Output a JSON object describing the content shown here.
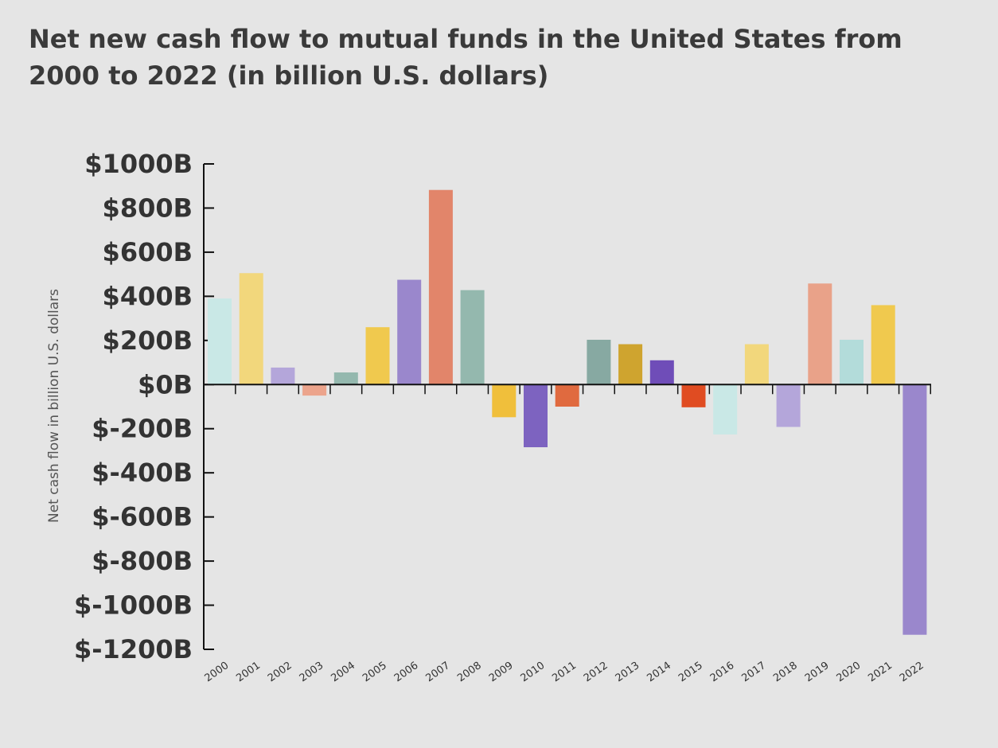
{
  "chart_data": {
    "type": "bar",
    "title": "Net new cash flow to mutual funds in the United States from 2000 to 2022 (in billion U.S. dollars)",
    "ylabel": "Net cash flow in billion U.S. dollars",
    "xlabel": "",
    "ylim": [
      -1200,
      1000
    ],
    "yticks": [
      1000,
      800,
      600,
      400,
      200,
      0,
      -200,
      -400,
      -600,
      -800,
      -1000,
      -1200
    ],
    "ytick_labels": [
      "$1000B",
      "$800B",
      "$600B",
      "$400B",
      "$200B",
      "$0B",
      "$-200B",
      "$-400B",
      "$-600B",
      "$-800B",
      "$-1000B",
      "$-1200B"
    ],
    "categories": [
      "2000",
      "2001",
      "2002",
      "2003",
      "2004",
      "2005",
      "2006",
      "2007",
      "2008",
      "2009",
      "2010",
      "2011",
      "2012",
      "2013",
      "2014",
      "2015",
      "2016",
      "2017",
      "2018",
      "2019",
      "2020",
      "2021",
      "2022"
    ],
    "values": [
      390,
      505,
      77,
      -50,
      55,
      260,
      475,
      882,
      428,
      -148,
      -284,
      -100,
      203,
      183,
      110,
      -103,
      -226,
      183,
      -192,
      458,
      203,
      360,
      -1134
    ],
    "colors": [
      "#c9e8e6",
      "#f2d77c",
      "#b4a6da",
      "#eca48c",
      "#94b8ae",
      "#f0c94e",
      "#9a87cc",
      "#e2856a",
      "#94b8ae",
      "#f0bf3b",
      "#7d63c0",
      "#e06a3f",
      "#87a9a2",
      "#cfa42f",
      "#6f4db8",
      "#e04c22",
      "#c9e8e6",
      "#f2d77c",
      "#b4a6da",
      "#e9a289",
      "#b3dcda",
      "#f0c94e",
      "#9a87cc"
    ],
    "grid": false,
    "legend": "none"
  }
}
